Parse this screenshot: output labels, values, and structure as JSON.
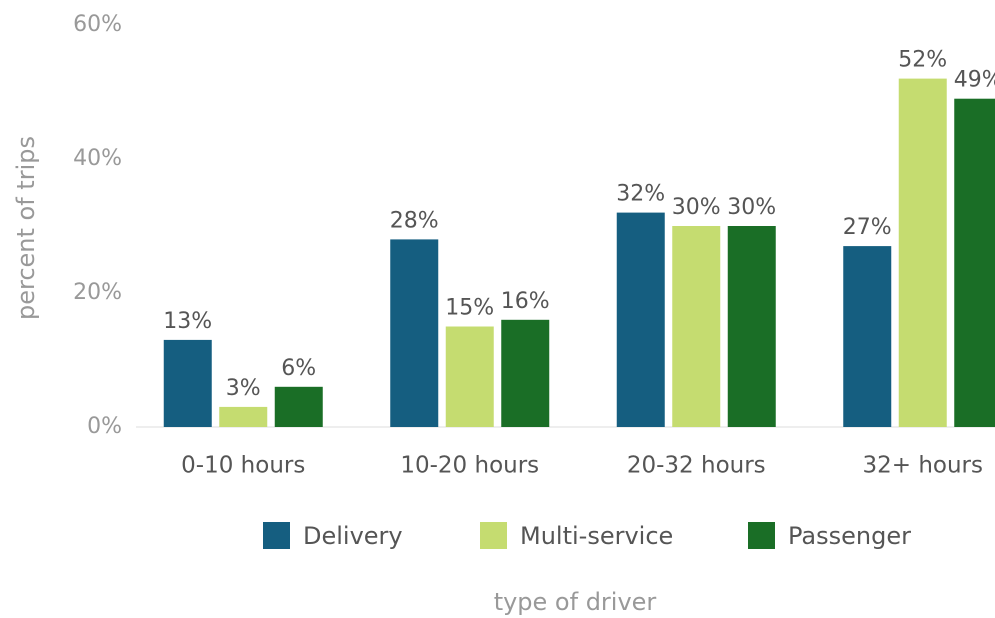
{
  "chart_data": {
    "type": "bar",
    "x_label": "type of driver",
    "y_label": "percent of trips",
    "categories": [
      "0-10 hours",
      "10-20 hours",
      "20-32 hours",
      "32+ hours"
    ],
    "series": [
      {
        "name": "Delivery",
        "color": "#155e80",
        "values": [
          13,
          28,
          32,
          27
        ],
        "value_labels": [
          "13%",
          "28%",
          "32%",
          "27%"
        ]
      },
      {
        "name": "Multi-service",
        "color": "#c5dc70",
        "values": [
          3,
          15,
          30,
          52
        ],
        "value_labels": [
          "3%",
          "15%",
          "30%",
          "52%"
        ]
      },
      {
        "name": "Passenger",
        "color": "#1a6e26",
        "values": [
          6,
          16,
          30,
          49
        ],
        "value_labels": [
          "6%",
          "16%",
          "30%",
          "49%"
        ]
      }
    ],
    "ylim": [
      0,
      60
    ],
    "yticks": [
      {
        "value": 0,
        "label": "0%"
      },
      {
        "value": 20,
        "label": "20%"
      },
      {
        "value": 40,
        "label": "40%"
      },
      {
        "value": 60,
        "label": "60%"
      }
    ],
    "legend": "bottom"
  }
}
